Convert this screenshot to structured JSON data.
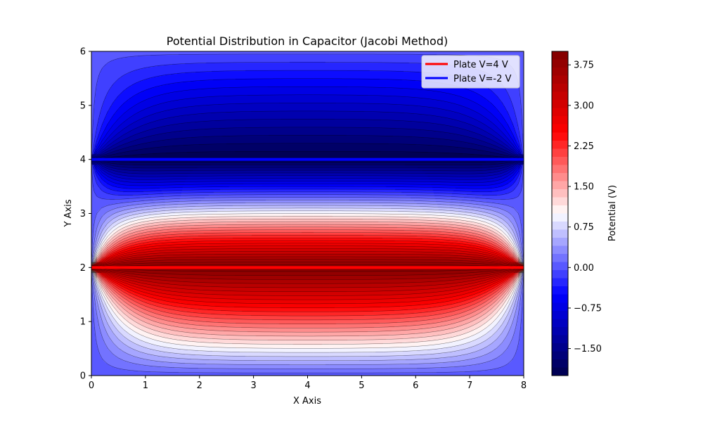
{
  "chart_data": {
    "type": "heatmap",
    "title": "Potential Distribution in Capacitor (Jacobi Method)",
    "xlabel": "X Axis",
    "ylabel": "Y Axis",
    "xlim": [
      0,
      8
    ],
    "ylim": [
      0,
      6
    ],
    "x_ticks": [
      "0",
      "1",
      "2",
      "3",
      "4",
      "5",
      "6",
      "7",
      "8"
    ],
    "y_ticks": [
      "0",
      "1",
      "2",
      "3",
      "4",
      "5",
      "6"
    ],
    "colorbar": {
      "label": "Potential (V)",
      "range": [
        -2,
        4
      ],
      "tick_values": [
        -1.5,
        -0.75,
        0.0,
        0.75,
        1.5,
        2.25,
        3.0,
        3.75
      ],
      "tick_labels": [
        "−1.50",
        "−0.75",
        "0.00",
        "0.75",
        "1.50",
        "2.25",
        "3.00",
        "3.75"
      ],
      "levels": 40,
      "colormap": "seismic"
    },
    "plates": [
      {
        "name": "Plate V=4 V",
        "y": 2,
        "x_range": [
          0,
          8
        ],
        "potential": 4,
        "color": "#ff0000"
      },
      {
        "name": "Plate V=-2 V",
        "y": 4,
        "x_range": [
          0,
          8
        ],
        "potential": -2,
        "color": "#0000ff"
      }
    ],
    "boundary_potential": 0,
    "grid": false,
    "legend_position": "top-right"
  }
}
